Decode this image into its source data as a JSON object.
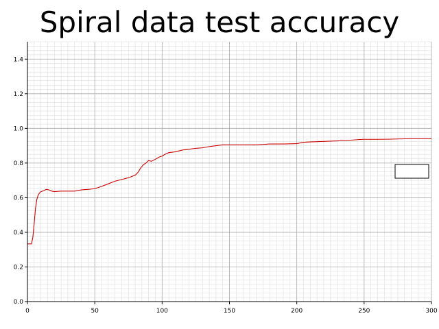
{
  "chart_data": {
    "type": "line",
    "title": "Spiral data test accuracy",
    "xlabel": "",
    "ylabel": "",
    "xlim": [
      0,
      300
    ],
    "ylim": [
      0,
      1.5
    ],
    "x_ticks": [
      "0",
      "50",
      "100",
      "150",
      "200",
      "250",
      "300"
    ],
    "y_ticks": [
      "0.0",
      "0.2",
      "0.4",
      "0.6",
      "0.8",
      "1.0",
      "1.2",
      "1.4"
    ],
    "grid": true,
    "legend": "right",
    "series": [
      {
        "name": "",
        "color": "#cc0000",
        "points": [
          [
            0,
            0.333
          ],
          [
            3,
            0.333
          ],
          [
            4,
            0.37
          ],
          [
            5,
            0.45
          ],
          [
            6,
            0.54
          ],
          [
            7,
            0.59
          ],
          [
            8,
            0.615
          ],
          [
            9,
            0.628
          ],
          [
            10,
            0.635
          ],
          [
            12,
            0.64
          ],
          [
            14,
            0.648
          ],
          [
            16,
            0.645
          ],
          [
            18,
            0.638
          ],
          [
            20,
            0.635
          ],
          [
            25,
            0.638
          ],
          [
            30,
            0.638
          ],
          [
            35,
            0.638
          ],
          [
            40,
            0.645
          ],
          [
            45,
            0.648
          ],
          [
            50,
            0.652
          ],
          [
            55,
            0.665
          ],
          [
            60,
            0.68
          ],
          [
            65,
            0.695
          ],
          [
            70,
            0.705
          ],
          [
            75,
            0.715
          ],
          [
            80,
            0.73
          ],
          [
            82,
            0.745
          ],
          [
            84,
            0.77
          ],
          [
            86,
            0.79
          ],
          [
            88,
            0.8
          ],
          [
            90,
            0.815
          ],
          [
            92,
            0.81
          ],
          [
            95,
            0.822
          ],
          [
            98,
            0.835
          ],
          [
            100,
            0.84
          ],
          [
            102,
            0.85
          ],
          [
            105,
            0.86
          ],
          [
            110,
            0.865
          ],
          [
            115,
            0.875
          ],
          [
            120,
            0.88
          ],
          [
            125,
            0.885
          ],
          [
            130,
            0.888
          ],
          [
            135,
            0.895
          ],
          [
            140,
            0.9
          ],
          [
            145,
            0.905
          ],
          [
            150,
            0.905
          ],
          [
            160,
            0.905
          ],
          [
            170,
            0.905
          ],
          [
            180,
            0.91
          ],
          [
            190,
            0.91
          ],
          [
            200,
            0.912
          ],
          [
            205,
            0.92
          ],
          [
            210,
            0.922
          ],
          [
            220,
            0.925
          ],
          [
            230,
            0.928
          ],
          [
            240,
            0.932
          ],
          [
            245,
            0.935
          ],
          [
            250,
            0.937
          ],
          [
            260,
            0.937
          ],
          [
            270,
            0.938
          ],
          [
            280,
            0.94
          ],
          [
            290,
            0.94
          ],
          [
            300,
            0.94
          ]
        ]
      }
    ]
  }
}
